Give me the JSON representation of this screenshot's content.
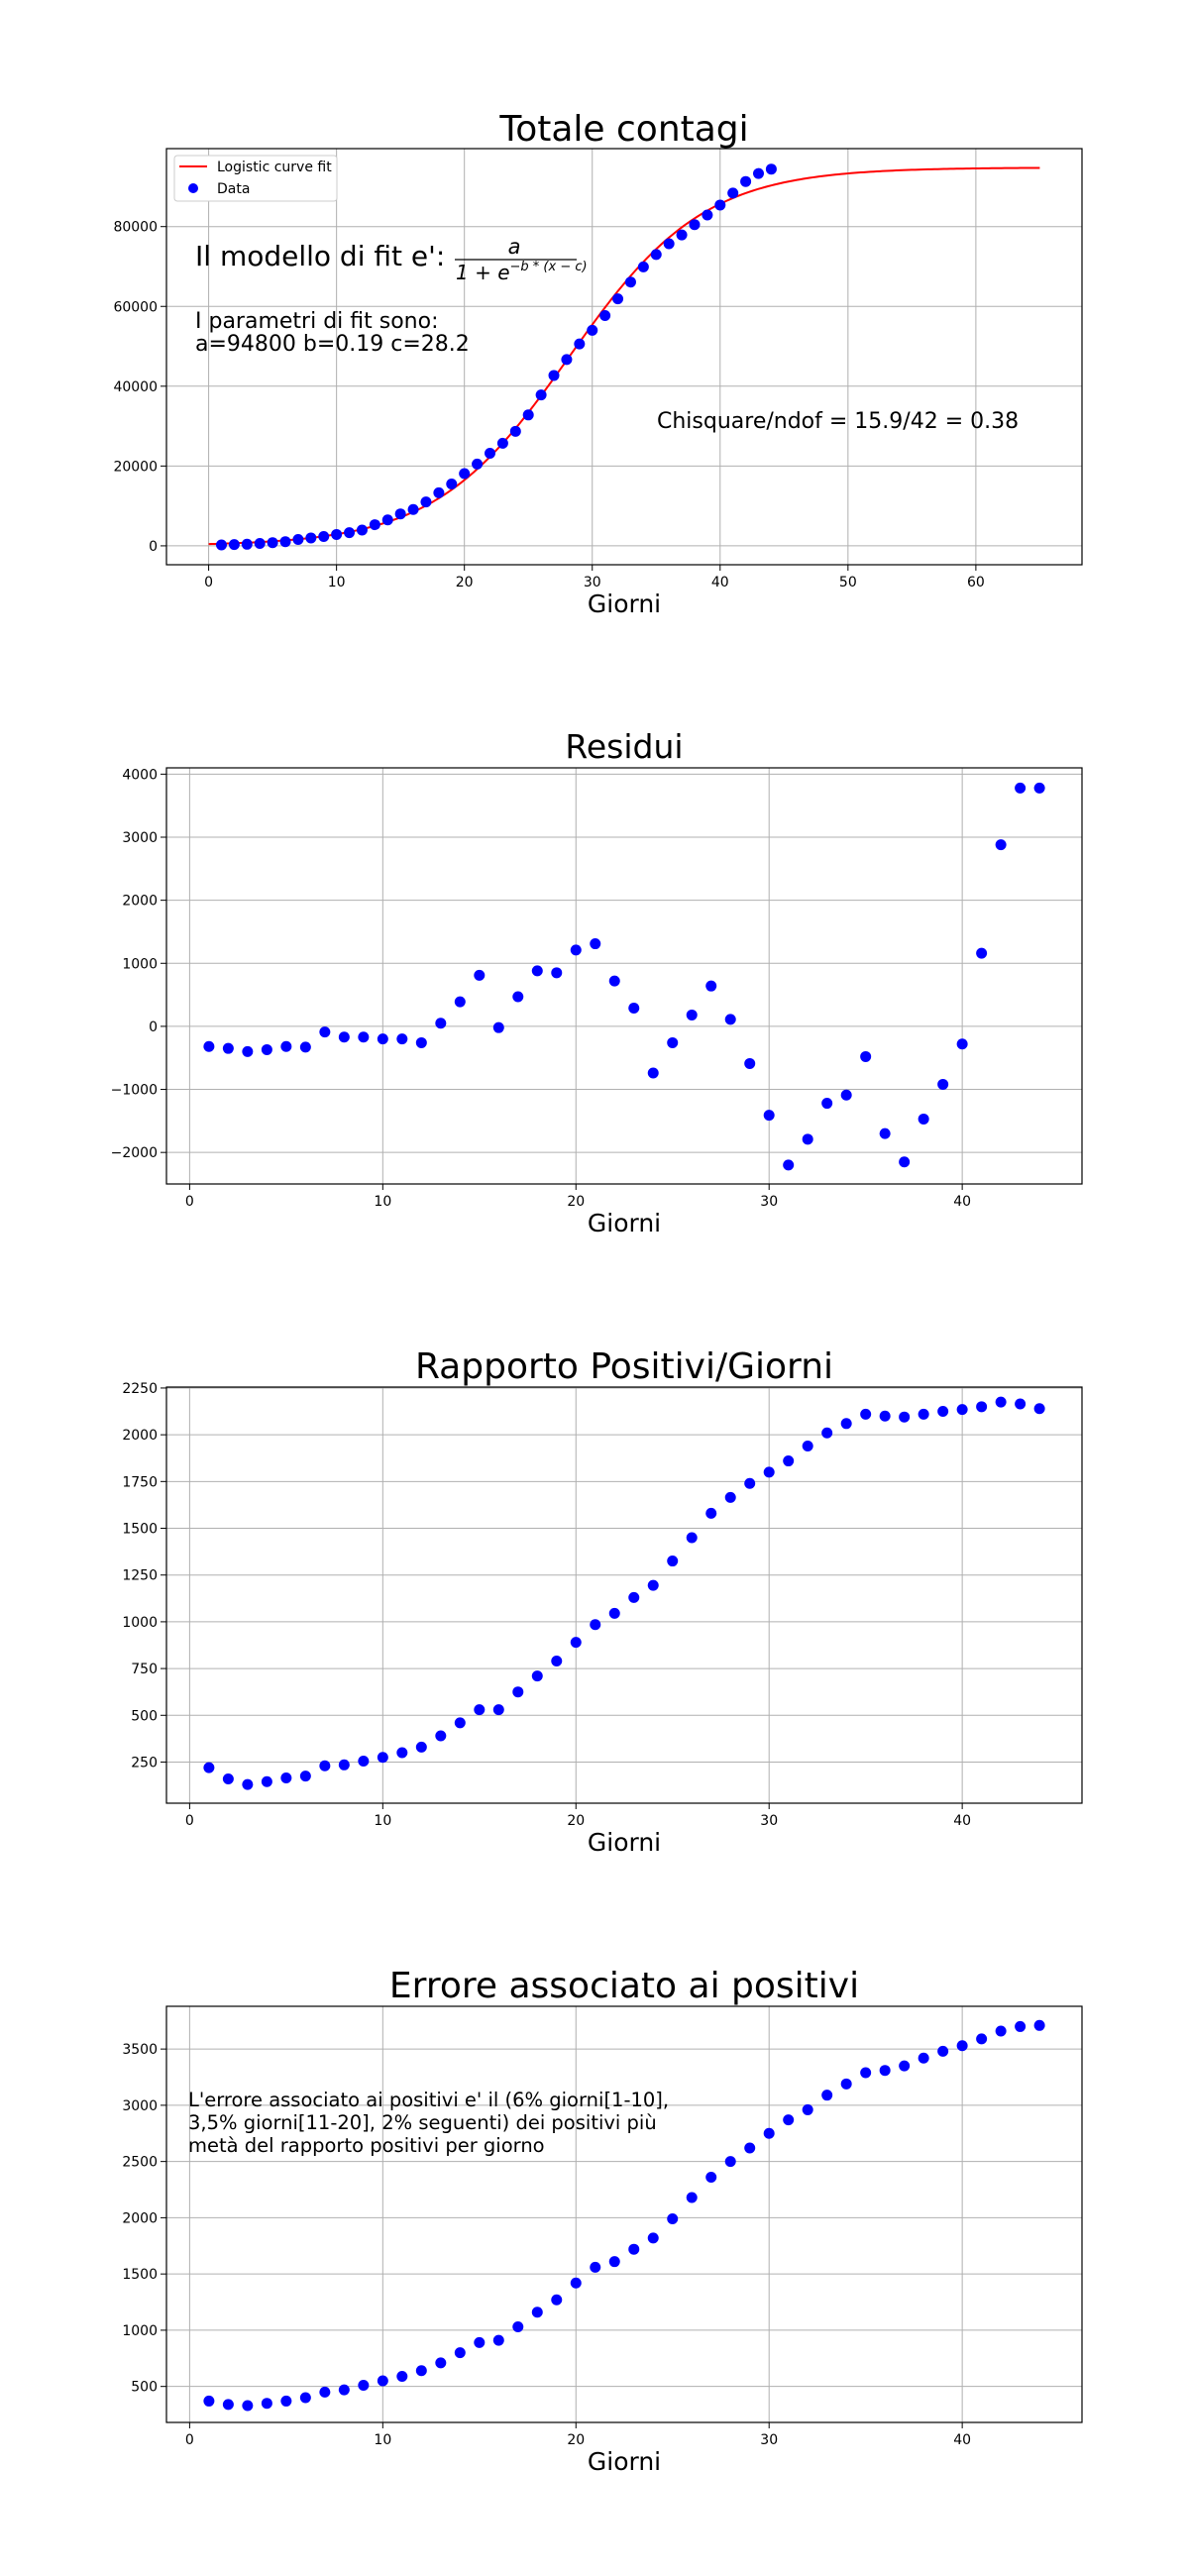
{
  "chart_data": [
    {
      "type": "scatter",
      "title": "Totale contagi",
      "xlabel": "Giorni",
      "ylabel": "",
      "xlim": [
        -3.3,
        68.3
      ],
      "ylim": [
        -4737,
        99540
      ],
      "xticks": [
        0,
        10,
        20,
        30,
        40,
        50,
        60
      ],
      "yticks": [
        0,
        20000,
        40000,
        60000,
        80000
      ],
      "grid": true,
      "legend": {
        "position": "top-left",
        "entries": [
          "Logistic curve fit",
          "Data"
        ]
      },
      "series": [
        {
          "name": "Logistic curve fit",
          "kind": "line",
          "color": "#ff0000",
          "formula": "a/(1+exp(-b*(x-c)))",
          "params": {
            "a": 94800,
            "b": 0.19,
            "c": 28.2
          },
          "x_range": [
            0,
            65
          ]
        },
        {
          "name": "Data",
          "kind": "scatter",
          "color": "#0000ff",
          "x": [
            1,
            2,
            3,
            4,
            5,
            6,
            7,
            8,
            9,
            10,
            11,
            12,
            13,
            14,
            15,
            16,
            17,
            18,
            19,
            20,
            21,
            22,
            23,
            24,
            25,
            26,
            27,
            28,
            29,
            30,
            31,
            32,
            33,
            34,
            35,
            36,
            37,
            38,
            39,
            40,
            41,
            42,
            43,
            44
          ],
          "y": [
            230,
            320,
            400,
            600,
            800,
            1050,
            1600,
            1980,
            2330,
            2850,
            3300,
            3950,
            5300,
            6500,
            8000,
            9100,
            11000,
            13300,
            15500,
            18100,
            20500,
            23200,
            25700,
            28700,
            32800,
            37800,
            42700,
            46700,
            50600,
            54000,
            57700,
            61900,
            66100,
            69900,
            73000,
            75700,
            77900,
            80500,
            82900,
            85400,
            88400,
            91300,
            93300,
            94400
          ]
        }
      ],
      "annotations": [
        {
          "text_prefix": "Il modello di fit e':",
          "numerator": "a",
          "denominator_base": "1 + e",
          "exponent": "−b * (x − c)"
        },
        {
          "lines": [
            "I parametri di fit sono:",
            "a=94800 b=0.19 c=28.2"
          ]
        },
        {
          "text": "Chisquare/ndof = 15.9/42 = 0.38"
        }
      ]
    },
    {
      "type": "scatter",
      "title": "Residui",
      "xlabel": "Giorni",
      "ylabel": "",
      "xlim": [
        -1.2,
        46.2
      ],
      "ylim": [
        -2500,
        4100
      ],
      "xticks": [
        0,
        10,
        20,
        30,
        40
      ],
      "yticks": [
        -2000,
        -1000,
        0,
        1000,
        2000,
        3000,
        4000
      ],
      "grid": true,
      "series": [
        {
          "name": "",
          "color": "#0000ff",
          "x": [
            1,
            2,
            3,
            4,
            5,
            6,
            7,
            8,
            9,
            10,
            11,
            12,
            13,
            14,
            15,
            16,
            17,
            18,
            19,
            20,
            21,
            22,
            23,
            24,
            25,
            26,
            27,
            28,
            29,
            30,
            31,
            32,
            33,
            34,
            35,
            36,
            37,
            38,
            39,
            40,
            41,
            42,
            43,
            44
          ],
          "y": [
            -320,
            -350,
            -400,
            -370,
            -320,
            -330,
            -90,
            -170,
            -170,
            -200,
            -200,
            -260,
            50,
            390,
            810,
            -20,
            470,
            880,
            850,
            1210,
            1310,
            720,
            290,
            -740,
            -260,
            180,
            640,
            110,
            -590,
            -1410,
            -2200,
            -1790,
            -1220,
            -1090,
            -480,
            -1700,
            -2150,
            -1470,
            -920,
            -280,
            1160,
            2880,
            3780,
            3780
          ]
        }
      ]
    },
    {
      "type": "scatter",
      "title": "Rapporto Positivi/Giorni",
      "xlabel": "Giorni",
      "ylabel": "",
      "xlim": [
        -1.2,
        46.2
      ],
      "ylim": [
        30,
        2255
      ],
      "xticks": [
        0,
        10,
        20,
        30,
        40
      ],
      "yticks": [
        250,
        500,
        750,
        1000,
        1250,
        1500,
        1750,
        2000,
        2250
      ],
      "grid": true,
      "series": [
        {
          "name": "",
          "color": "#0000ff",
          "x": [
            1,
            2,
            3,
            4,
            5,
            6,
            7,
            8,
            9,
            10,
            11,
            12,
            13,
            14,
            15,
            16,
            17,
            18,
            19,
            20,
            21,
            22,
            23,
            24,
            25,
            26,
            27,
            28,
            29,
            30,
            31,
            32,
            33,
            34,
            35,
            36,
            37,
            38,
            39,
            40,
            41,
            42,
            43,
            44
          ],
          "y": [
            220,
            160,
            130,
            145,
            165,
            175,
            230,
            235,
            255,
            275,
            300,
            330,
            390,
            460,
            530,
            530,
            625,
            710,
            790,
            890,
            985,
            1045,
            1130,
            1195,
            1325,
            1450,
            1580,
            1665,
            1740,
            1800,
            1860,
            1940,
            2010,
            2060,
            2110,
            2100,
            2095,
            2110,
            2125,
            2135,
            2150,
            2175,
            2165,
            2140
          ]
        }
      ]
    },
    {
      "type": "scatter",
      "title": "Errore associato ai positivi",
      "xlabel": "Giorni",
      "ylabel": "",
      "xlim": [
        -1.2,
        46.2
      ],
      "ylim": [
        180,
        3880
      ],
      "xticks": [
        0,
        10,
        20,
        30,
        40
      ],
      "yticks": [
        500,
        1000,
        1500,
        2000,
        2500,
        3000,
        3500
      ],
      "grid": true,
      "series": [
        {
          "name": "",
          "color": "#0000ff",
          "x": [
            1,
            2,
            3,
            4,
            5,
            6,
            7,
            8,
            9,
            10,
            11,
            12,
            13,
            14,
            15,
            16,
            17,
            18,
            19,
            20,
            21,
            22,
            23,
            24,
            25,
            26,
            27,
            28,
            29,
            30,
            31,
            32,
            33,
            34,
            35,
            36,
            37,
            38,
            39,
            40,
            41,
            42,
            43,
            44
          ],
          "y": [
            370,
            340,
            330,
            350,
            370,
            400,
            450,
            470,
            510,
            550,
            590,
            640,
            710,
            800,
            890,
            910,
            1030,
            1160,
            1270,
            1420,
            1560,
            1610,
            1720,
            1820,
            1990,
            2180,
            2360,
            2500,
            2620,
            2750,
            2870,
            2960,
            3090,
            3190,
            3290,
            3310,
            3350,
            3420,
            3480,
            3530,
            3590,
            3660,
            3700,
            3710
          ]
        }
      ],
      "annotations": [
        {
          "lines": [
            "L'errore associato ai positivi e' il (6% giorni[1-10],",
            "3,5% giorni[11-20], 2% seguenti) dei positivi più",
            "metà del rapporto positivi per giorno"
          ]
        }
      ]
    }
  ]
}
